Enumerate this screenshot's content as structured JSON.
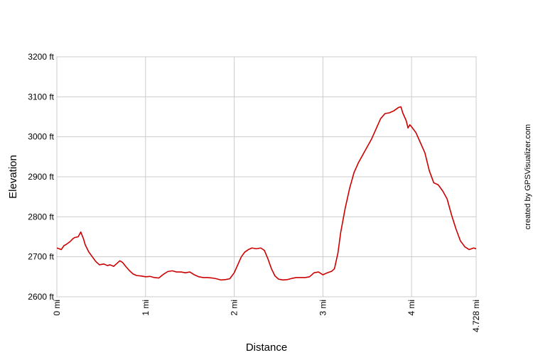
{
  "chart_data": {
    "type": "line",
    "title": "",
    "xlabel": "Distance",
    "ylabel": "Elevation",
    "xlim": [
      0,
      4.728
    ],
    "ylim": [
      2600,
      3200
    ],
    "grid": true,
    "x_ticks": [
      {
        "value": 0,
        "label": "0 mi"
      },
      {
        "value": 1,
        "label": "1 mi"
      },
      {
        "value": 2,
        "label": "2 mi"
      },
      {
        "value": 3,
        "label": "3 mi"
      },
      {
        "value": 4,
        "label": "4 mi"
      },
      {
        "value": 4.728,
        "label": "4.728 mi"
      }
    ],
    "y_ticks": [
      {
        "value": 2600,
        "label": "2600 ft"
      },
      {
        "value": 2700,
        "label": "2700 ft"
      },
      {
        "value": 2800,
        "label": "2800 ft"
      },
      {
        "value": 2900,
        "label": "2900 ft"
      },
      {
        "value": 3000,
        "label": "3000 ft"
      },
      {
        "value": 3100,
        "label": "3100 ft"
      },
      {
        "value": 3200,
        "label": "3200 ft"
      }
    ],
    "series": [
      {
        "color": "#cc0000",
        "x": [
          0,
          0.05,
          0.08,
          0.1,
          0.15,
          0.18,
          0.2,
          0.24,
          0.27,
          0.3,
          0.32,
          0.36,
          0.4,
          0.44,
          0.48,
          0.53,
          0.57,
          0.6,
          0.64,
          0.68,
          0.71,
          0.74,
          0.78,
          0.82,
          0.86,
          0.9,
          0.95,
          1.0,
          1.05,
          1.1,
          1.15,
          1.2,
          1.25,
          1.3,
          1.35,
          1.4,
          1.45,
          1.5,
          1.55,
          1.6,
          1.65,
          1.7,
          1.75,
          1.8,
          1.85,
          1.9,
          1.95,
          2.0,
          2.04,
          2.08,
          2.12,
          2.16,
          2.2,
          2.25,
          2.3,
          2.34,
          2.38,
          2.42,
          2.46,
          2.5,
          2.55,
          2.6,
          2.65,
          2.7,
          2.75,
          2.8,
          2.85,
          2.9,
          2.95,
          3.0,
          3.05,
          3.1,
          3.13,
          3.17,
          3.2,
          3.25,
          3.3,
          3.35,
          3.4,
          3.45,
          3.5,
          3.55,
          3.6,
          3.65,
          3.7,
          3.75,
          3.8,
          3.85,
          3.88,
          3.9,
          3.94,
          3.96,
          3.98,
          4.0,
          4.05,
          4.1,
          4.15,
          4.2,
          4.25,
          4.3,
          4.35,
          4.4,
          4.45,
          4.5,
          4.55,
          4.6,
          4.65,
          4.7,
          4.728
        ],
        "y": [
          2722,
          2718,
          2728,
          2730,
          2738,
          2745,
          2748,
          2750,
          2762,
          2745,
          2730,
          2712,
          2700,
          2688,
          2680,
          2682,
          2678,
          2680,
          2676,
          2684,
          2690,
          2686,
          2675,
          2665,
          2657,
          2653,
          2652,
          2650,
          2651,
          2648,
          2647,
          2656,
          2663,
          2665,
          2662,
          2662,
          2660,
          2662,
          2655,
          2650,
          2648,
          2648,
          2647,
          2645,
          2642,
          2643,
          2645,
          2660,
          2680,
          2700,
          2712,
          2718,
          2722,
          2720,
          2722,
          2716,
          2695,
          2670,
          2652,
          2644,
          2642,
          2643,
          2646,
          2648,
          2648,
          2648,
          2650,
          2660,
          2662,
          2655,
          2660,
          2664,
          2670,
          2710,
          2760,
          2820,
          2870,
          2910,
          2935,
          2955,
          2975,
          2995,
          3020,
          3045,
          3058,
          3060,
          3065,
          3073,
          3075,
          3060,
          3040,
          3022,
          3030,
          3025,
          3010,
          2985,
          2960,
          2915,
          2885,
          2880,
          2865,
          2845,
          2805,
          2770,
          2740,
          2725,
          2718,
          2722,
          2720
        ]
      }
    ]
  },
  "side_note": "created by GPSVisualizer.com"
}
